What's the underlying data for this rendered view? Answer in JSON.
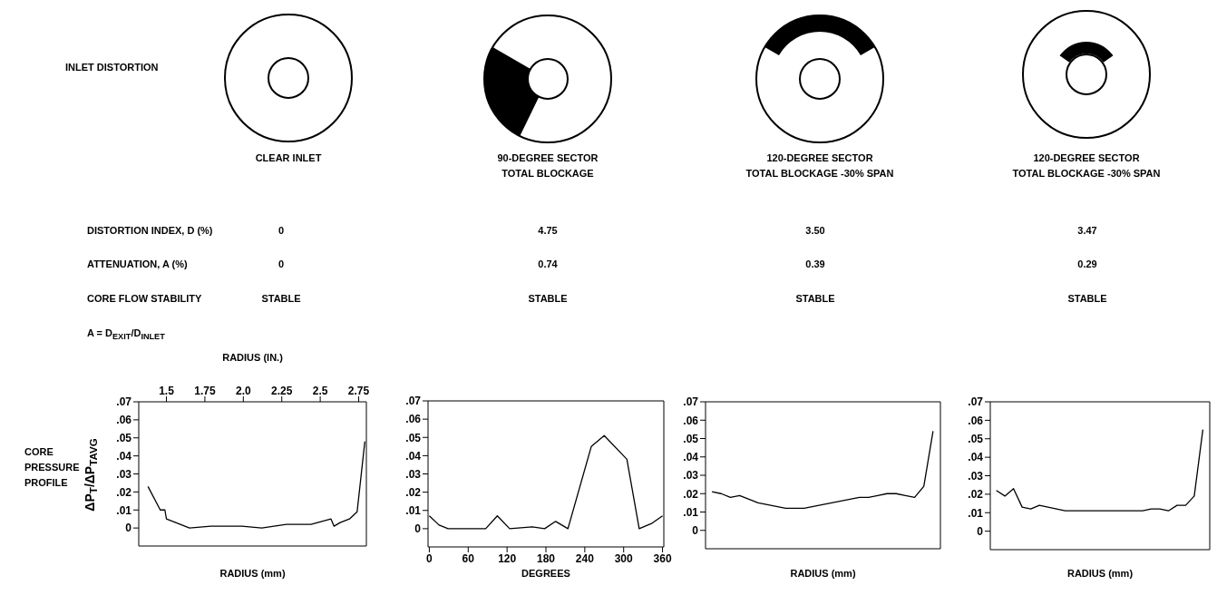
{
  "chart_data": [
    {
      "type": "other",
      "annotations": [
        "INLET DISTORTION",
        "DISTORTION INDEX, D (%)",
        "ATTENUATION, A (%)",
        "CORE FLOW STABILITY",
        "A = D$_{EXIT}$/D$_{INLET}$",
        "CORE\nPRESSURE\nPROFILE"
      ]
    },
    {
      "type": "line",
      "title": "CLEAR INLET",
      "annotations": [
        "0",
        "0",
        "STABLE"
      ],
      "xlabel": "RADIUS (mm)",
      "x2label": "RADIUS (IN.)",
      "ylabel": "ΔP$_{T}$/ΔP$_{TAVG}$",
      "xlim": [
        1.32,
        2.8
      ],
      "xticks": [
        1.5,
        1.75,
        {
          "value": 2,
          "label": "2.0"
        },
        2.25,
        2.5,
        2.75
      ],
      "ylim": [
        -0.01,
        0.07
      ],
      "yticks": [
        {
          "value": 0,
          "label": "0"
        },
        {
          "value": 0.01,
          "label": ".01"
        },
        {
          "value": 0.02,
          "label": ".02"
        },
        {
          "value": 0.03,
          "label": ".03"
        },
        {
          "value": 0.04,
          "label": ".04"
        },
        {
          "value": 0.05,
          "label": ".05"
        },
        {
          "value": 0.06,
          "label": ".06"
        },
        {
          "value": 0.07,
          "label": ".07"
        }
      ],
      "marker": "none",
      "line_style": "solid",
      "series": [
        {
          "color": "#000000",
          "x": [
            1.38,
            1.46,
            1.49,
            1.5,
            1.59,
            1.65,
            1.79,
            1.99,
            2.12,
            2.28,
            2.44,
            2.57,
            2.59,
            2.63,
            2.69,
            2.74,
            2.79
          ],
          "values": [
            0.023,
            0.01,
            0.01,
            0.005,
            0.002,
            0.0,
            0.001,
            0.001,
            0.0,
            0.002,
            0.002,
            0.005,
            0.001,
            0.003,
            0.005,
            0.009,
            0.048
          ]
        }
      ]
    },
    {
      "type": "line",
      "title": "90-DEGREE SECTOR\nTOTAL BLOCKAGE",
      "annotations": [
        "4.75",
        "0.74",
        "STABLE"
      ],
      "xlabel": "DEGREES",
      "xlim": [
        -2,
        362
      ],
      "xticks": [
        0,
        60,
        120,
        180,
        240,
        300,
        360
      ],
      "ylim": [
        -0.01,
        0.07
      ],
      "yticks": [
        {
          "value": 0,
          "label": "0"
        },
        {
          "value": 0.01,
          "label": ".01"
        },
        {
          "value": 0.02,
          "label": ".02"
        },
        {
          "value": 0.03,
          "label": ".03"
        },
        {
          "value": 0.04,
          "label": ".04"
        },
        {
          "value": 0.05,
          "label": ".05"
        },
        {
          "value": 0.06,
          "label": ".06"
        },
        {
          "value": 0.07,
          "label": ".07"
        }
      ],
      "marker": "none",
      "line_style": "solid",
      "series": [
        {
          "color": "#000000",
          "x": [
            0,
            15,
            29,
            87,
            105,
            124,
            159,
            178,
            195,
            214,
            250,
            270,
            305,
            324,
            344,
            360
          ],
          "values": [
            0.007,
            0.002,
            0,
            0,
            0.007,
            0,
            0.001,
            0,
            0.004,
            0,
            0.045,
            0.051,
            0.038,
            0,
            0.003,
            0.007
          ]
        }
      ]
    },
    {
      "type": "line",
      "title": "120-DEGREE SECTOR\nTOTAL BLOCKAGE -30% SPAN",
      "annotations": [
        "3.50",
        "0.39",
        "STABLE"
      ],
      "xlabel": "RADIUS (mm)",
      "categories": [
        null,
        null,
        null,
        null,
        null,
        null,
        null,
        null,
        null,
        null,
        null,
        null,
        null,
        null,
        null,
        null,
        null,
        null,
        null,
        null,
        null,
        null,
        null,
        null,
        null
      ],
      "tick_labels": "y",
      "ylim": [
        -0.01,
        0.07
      ],
      "yticks": [
        {
          "value": 0,
          "label": "0"
        },
        {
          "value": 0.01,
          "label": ".01"
        },
        {
          "value": 0.02,
          "label": ".02"
        },
        {
          "value": 0.03,
          "label": ".03"
        },
        {
          "value": 0.04,
          "label": ".04"
        },
        {
          "value": 0.05,
          "label": ".05"
        },
        {
          "value": 0.06,
          "label": ".06"
        },
        {
          "value": 0.07,
          "label": ".07"
        }
      ],
      "marker": "none",
      "line_style": "solid",
      "series": [
        {
          "color": "#000000",
          "values": [
            0.021,
            0.02,
            0.018,
            0.019,
            0.017,
            0.015,
            0.014,
            0.013,
            0.012,
            0.012,
            0.012,
            0.013,
            0.014,
            0.015,
            0.016,
            0.017,
            0.018,
            0.018,
            0.019,
            0.02,
            0.02,
            0.019,
            0.018,
            0.024,
            0.054
          ]
        }
      ]
    },
    {
      "type": "line",
      "title": "120-DEGREE SECTOR\nTOTAL BLOCKAGE -30% SPAN",
      "annotations": [
        "3.47",
        "0.29",
        "STABLE"
      ],
      "xlabel": "RADIUS (mm)",
      "categories": [
        null,
        null,
        null,
        null,
        null,
        null,
        null,
        null,
        null,
        null,
        null,
        null,
        null,
        null,
        null,
        null,
        null,
        null,
        null,
        null,
        null,
        null,
        null,
        null,
        null
      ],
      "tick_labels": "y",
      "ylim": [
        -0.01,
        0.07
      ],
      "yticks": [
        {
          "value": 0,
          "label": "0"
        },
        {
          "value": 0.01,
          "label": ".01"
        },
        {
          "value": 0.02,
          "label": ".02"
        },
        {
          "value": 0.03,
          "label": ".03"
        },
        {
          "value": 0.04,
          "label": ".04"
        },
        {
          "value": 0.05,
          "label": ".05"
        },
        {
          "value": 0.06,
          "label": ".06"
        },
        {
          "value": 0.07,
          "label": ".07"
        }
      ],
      "marker": "none",
      "line_style": "solid",
      "series": [
        {
          "color": "#000000",
          "values": [
            0.022,
            0.019,
            0.023,
            0.013,
            0.012,
            0.014,
            0.013,
            0.012,
            0.011,
            0.011,
            0.011,
            0.011,
            0.011,
            0.011,
            0.011,
            0.011,
            0.011,
            0.011,
            0.012,
            0.012,
            0.011,
            0.014,
            0.014,
            0.019,
            0.055
          ]
        }
      ]
    }
  ]
}
